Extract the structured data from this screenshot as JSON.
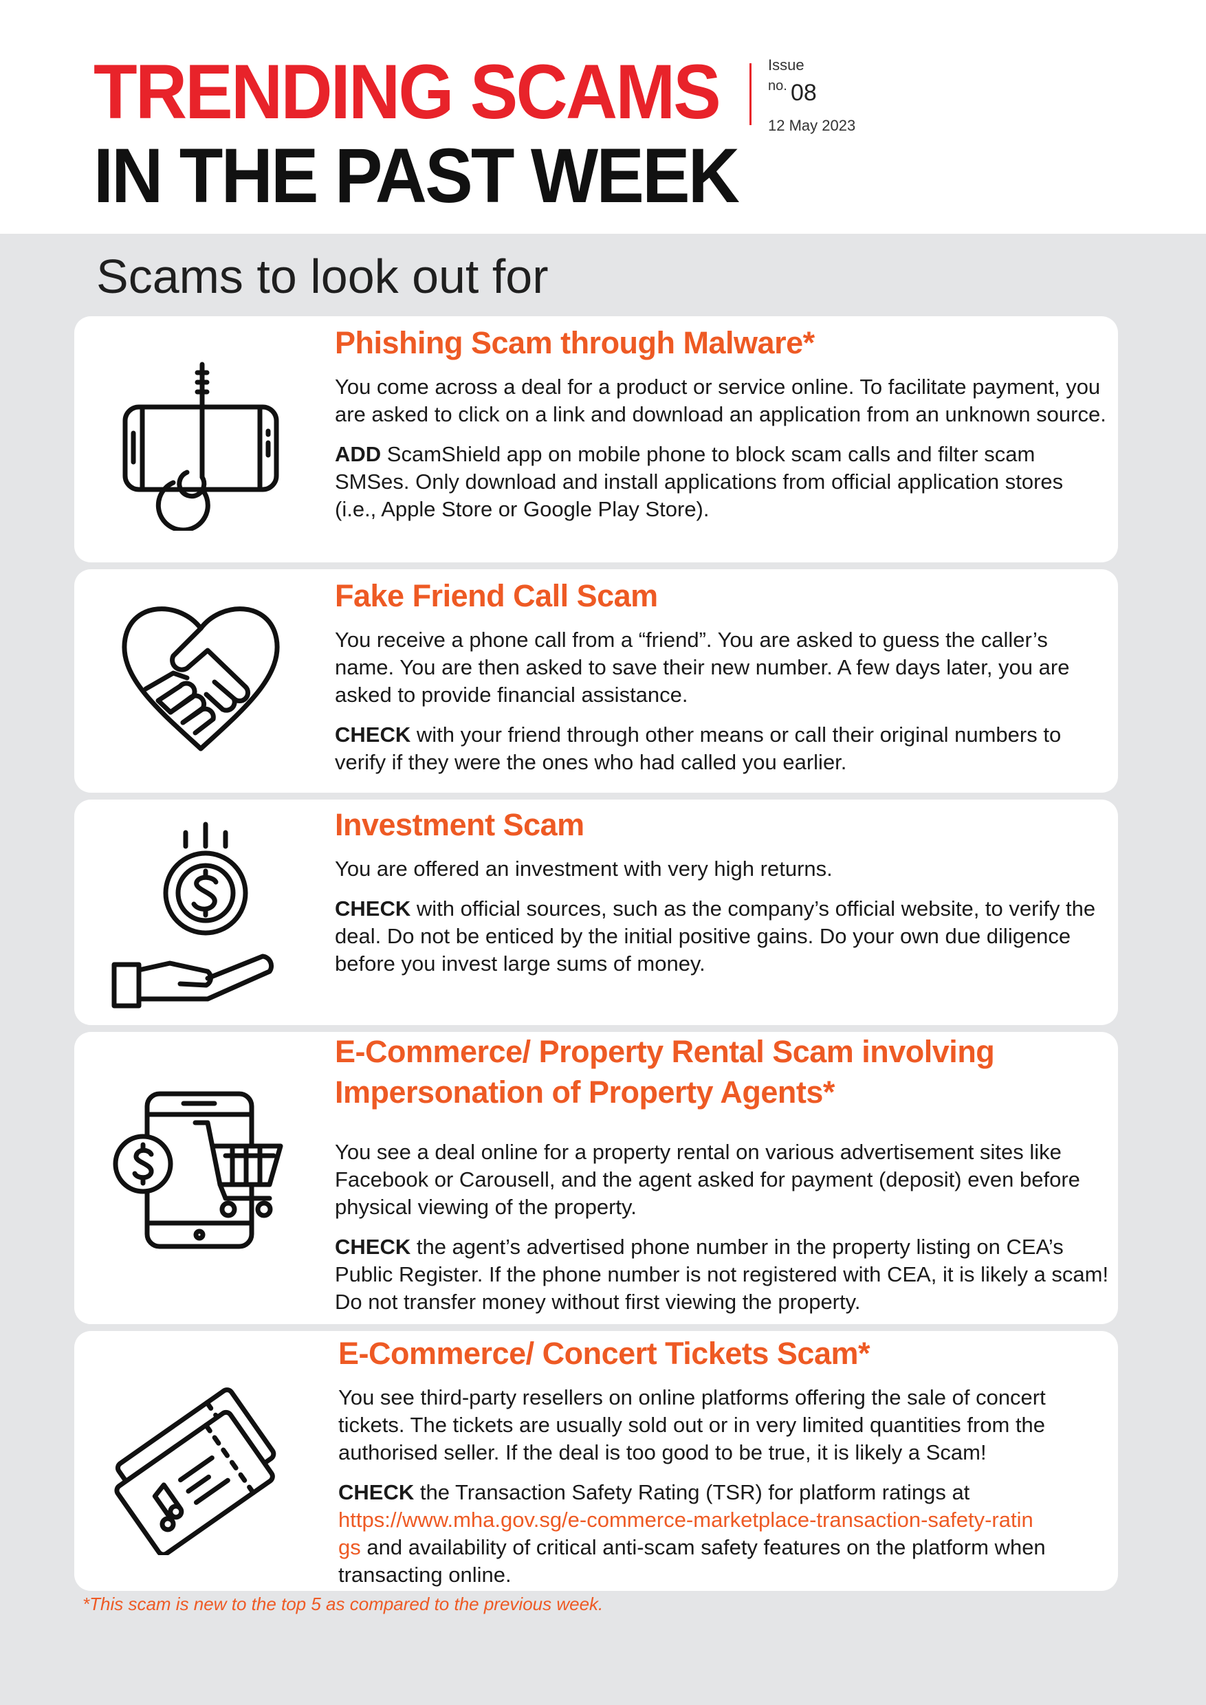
{
  "header": {
    "title_line1": "TRENDING SCAMS",
    "title_line2": "IN THE PAST WEEK",
    "issue_label": "Issue",
    "issue_no_prefix": "no.",
    "issue_no": "08",
    "date": "12 May 2023"
  },
  "section_heading": "Scams to look out for",
  "scams": [
    {
      "title": "Phishing Scam through Malware*",
      "description": "You come across a deal for a product or service online. To facilitate payment, you are asked to click on a link and download an application from an unknown source.",
      "advice_keyword": "ADD",
      "advice": " ScamShield app on mobile phone to block scam calls and filter scam SMSes. Only download and install applications from official application stores (i.e., Apple Store or Google Play Store).",
      "icon": "phone-hook-icon"
    },
    {
      "title": "Fake Friend Call Scam",
      "description": "You receive a phone call from a “friend”. You are asked to guess the caller’s name. You are then asked to save their new number. A few days later, you are asked to provide financial assistance.",
      "advice_keyword": "CHECK",
      "advice": " with your friend through other means or call their original numbers to verify if they were the ones who had called you earlier.",
      "icon": "heart-handshake-icon"
    },
    {
      "title": "Investment Scam",
      "description": "You are offered an investment with very high returns.",
      "advice_keyword": "CHECK",
      "advice": " with official sources, such as the company’s official website, to verify the deal. Do not be enticed by the initial positive gains. Do your own due diligence before you invest large sums of money.",
      "icon": "coin-hand-icon"
    },
    {
      "title_line1": "E-Commerce/ Property Rental Scam involving",
      "title_line2": "Impersonation of Property Agents*",
      "description": "You see a deal online for a property rental on various advertisement sites like Facebook or Carousell, and the agent asked for payment (deposit) even before physical viewing of the property.",
      "advice_keyword": "CHECK",
      "advice": " the agent’s advertised phone number in the property listing on CEA’s Public Register. If the phone number is not registered with CEA, it is likely a scam! Do not transfer money without first viewing the property.",
      "icon": "phone-cart-dollar-icon"
    },
    {
      "title": "E-Commerce/ Concert Tickets Scam*",
      "description": "You see third-party resellers on online platforms offering the sale of concert tickets. The tickets are usually sold out or in very limited quantities from the authorised seller. If the deal is too good to be true, it is likely a Scam!",
      "advice_keyword": "CHECK",
      "advice_pre": " the Transaction Safety Rating (TSR) for platform ratings at",
      "link_part1": "https://www.mha.gov.sg/e-commerce-marketplace-transaction-safety-ratin",
      "link_part2": "gs",
      "advice_post": " and availability of critical anti-scam safety features on the platform when transacting online.",
      "icon": "concert-tickets-icon"
    }
  ],
  "footnote": "*This scam is new to the top 5 as compared to the previous week.",
  "colors": {
    "title_red": "#e8232a",
    "heading_orange": "#ee5a24",
    "background_grey": "#e4e5e7"
  }
}
